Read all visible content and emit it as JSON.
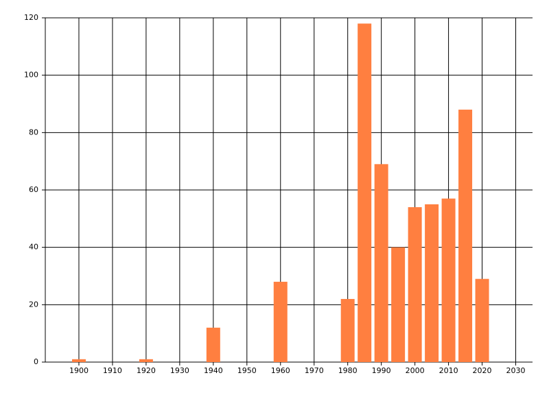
{
  "chart_data": {
    "type": "bar",
    "x": [
      1900,
      1920,
      1940,
      1960,
      1980,
      1985,
      1990,
      1995,
      2000,
      2005,
      2010,
      2015,
      2020
    ],
    "values": [
      1,
      1,
      12,
      28,
      22,
      118,
      69,
      40,
      54,
      55,
      57,
      88,
      29
    ],
    "color": "#ff7f40",
    "xlim": [
      1890,
      2035
    ],
    "xticks": [
      1900,
      1910,
      1920,
      1930,
      1940,
      1950,
      1960,
      1970,
      1980,
      1990,
      2000,
      2010,
      2020,
      2030
    ],
    "ylim": [
      0,
      120
    ],
    "yticks": [
      0,
      20,
      40,
      60,
      80,
      100,
      120
    ],
    "grid": true
  }
}
